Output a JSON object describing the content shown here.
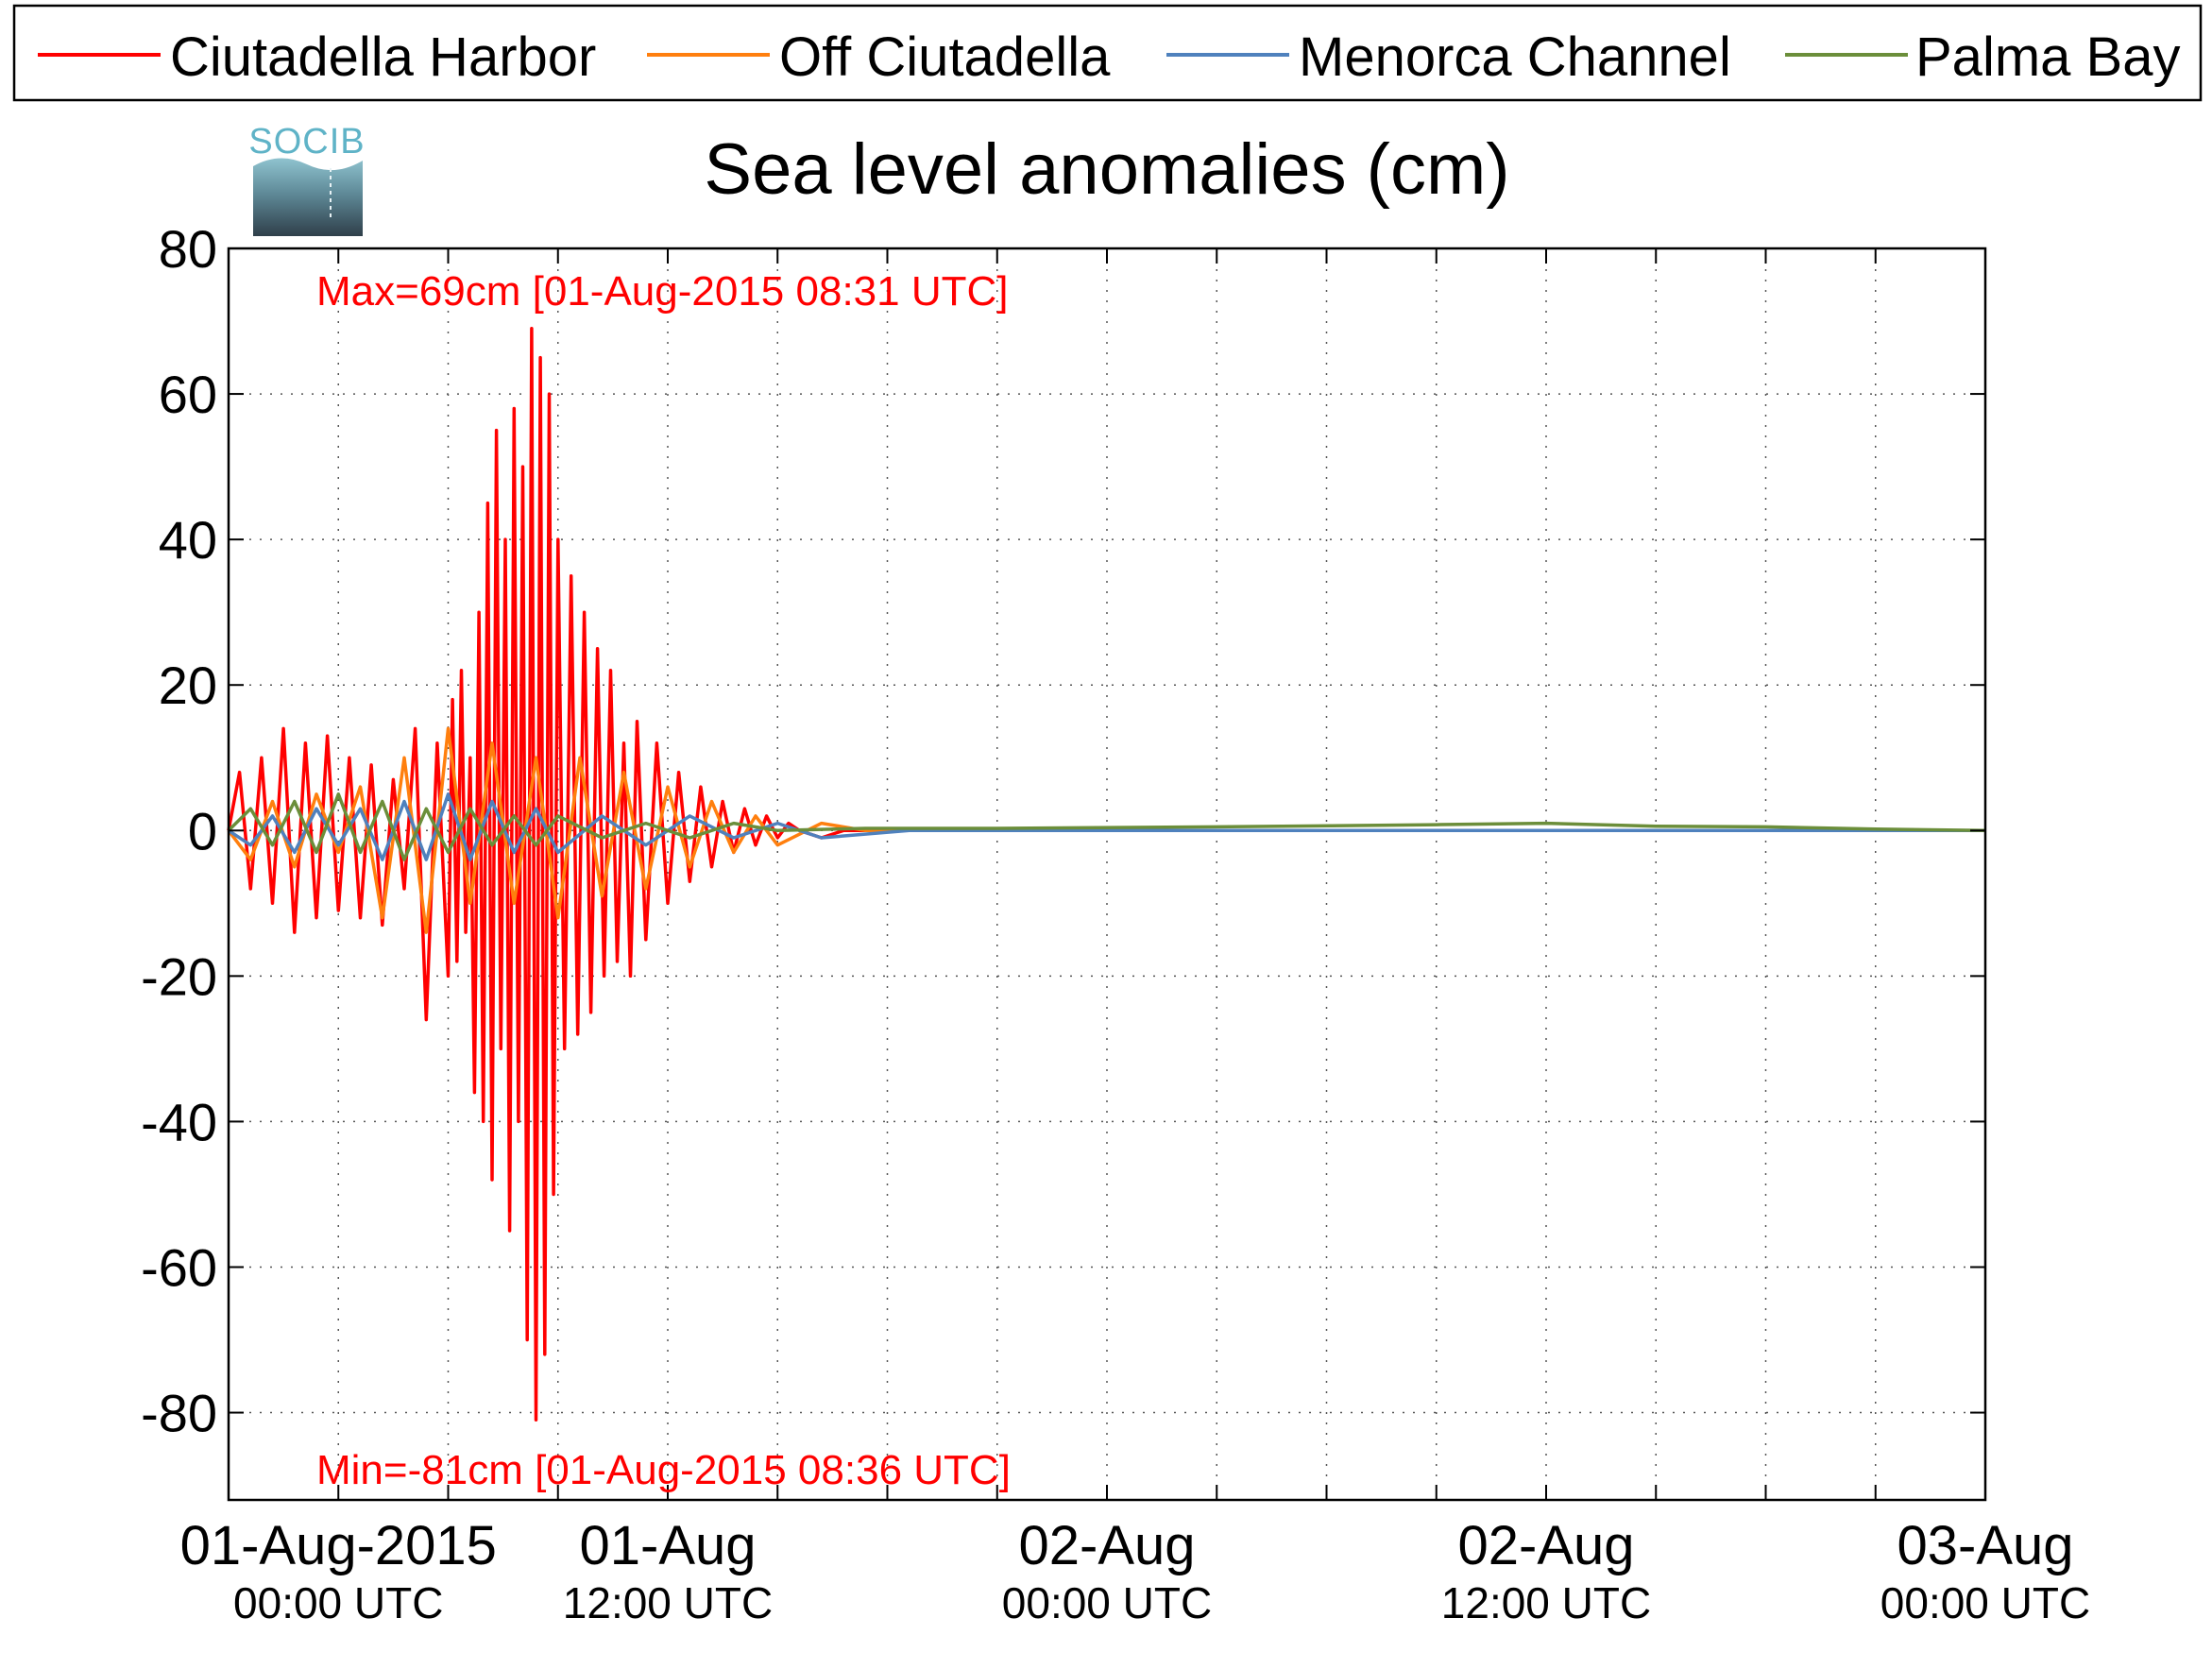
{
  "brand": {
    "logo_text": "SOCIB"
  },
  "legend": {
    "items": [
      {
        "label": "Ciutadella Harbor",
        "color": "#ff0000"
      },
      {
        "label": "Off Ciutadella",
        "color": "#ff7f0e"
      },
      {
        "label": "Menorca Channel",
        "color": "#4f81bd"
      },
      {
        "label": "Palma Bay",
        "color": "#6b8e3a"
      }
    ]
  },
  "chart_data": {
    "type": "line",
    "title": "Sea level anomalies (cm)",
    "xlabel": "",
    "ylabel": "",
    "x_range_hours": [
      -5,
      75
    ],
    "ylim": [
      -92,
      80
    ],
    "grid": true,
    "legend_position": "top",
    "y_ticks": [
      80,
      60,
      40,
      20,
      0,
      -20,
      -40,
      -60,
      -80
    ],
    "x_tick_labels": [
      {
        "hour": 0,
        "line1": "01-Aug-2015",
        "line2": "00:00 UTC"
      },
      {
        "hour": 15,
        "line1": "01-Aug",
        "line2": "12:00 UTC"
      },
      {
        "hour": 35,
        "line1": "02-Aug",
        "line2": "00:00 UTC"
      },
      {
        "hour": 55,
        "line1": "02-Aug",
        "line2": "12:00 UTC"
      },
      {
        "hour": 75,
        "line1": "03-Aug",
        "line2": "00:00 UTC"
      }
    ],
    "x_minor_ticks": [
      -5,
      0,
      5,
      10,
      15,
      20,
      25,
      30,
      35,
      40,
      45,
      50,
      55,
      60,
      65,
      70,
      75
    ],
    "annotations": [
      {
        "text": "Max=69cm [01-Aug-2015 08:31 UTC]",
        "x": -1,
        "y": 74,
        "color": "#ff0000"
      },
      {
        "text": "Min=-81cm [01-Aug-2015 08:36 UTC]",
        "x": -1,
        "y": -88,
        "color": "#ff0000"
      }
    ],
    "series": [
      {
        "name": "Ciutadella Harbor",
        "color": "#ff0000",
        "x": [
          -5,
          -4.5,
          -4,
          -3.5,
          -3,
          -2.5,
          -2,
          -1.5,
          -1,
          -0.5,
          0,
          0.5,
          1,
          1.5,
          2,
          2.5,
          3,
          3.5,
          4,
          4.5,
          5,
          5.2,
          5.4,
          5.6,
          5.8,
          6,
          6.2,
          6.4,
          6.6,
          6.8,
          7,
          7.2,
          7.4,
          7.6,
          7.8,
          8,
          8.2,
          8.4,
          8.6,
          8.8,
          9,
          9.2,
          9.4,
          9.6,
          9.8,
          10,
          10.3,
          10.6,
          10.9,
          11.2,
          11.5,
          11.8,
          12.1,
          12.4,
          12.7,
          13,
          13.3,
          13.6,
          14,
          14.5,
          15,
          15.5,
          16,
          16.5,
          17,
          17.5,
          18,
          18.5,
          19,
          19.5,
          20,
          20.5,
          21,
          22,
          23,
          24,
          25,
          26,
          28,
          30,
          32,
          35,
          38,
          42,
          46,
          50,
          54,
          58,
          62,
          66,
          70,
          75
        ],
        "y": [
          0,
          8,
          -8,
          10,
          -10,
          14,
          -14,
          12,
          -12,
          13,
          -11,
          10,
          -12,
          9,
          -13,
          7,
          -8,
          14,
          -26,
          12,
          -20,
          18,
          -18,
          22,
          -14,
          10,
          -36,
          30,
          -40,
          45,
          -48,
          55,
          -30,
          40,
          -55,
          58,
          -40,
          50,
          -70,
          69,
          -81,
          65,
          -72,
          60,
          -50,
          40,
          -30,
          35,
          -28,
          30,
          -25,
          25,
          -20,
          22,
          -18,
          12,
          -20,
          15,
          -15,
          12,
          -10,
          8,
          -7,
          6,
          -5,
          4,
          -3,
          3,
          -2,
          2,
          -1,
          1,
          0,
          -1,
          0,
          0,
          0,
          0,
          0,
          0,
          0,
          0,
          0,
          0,
          0,
          0,
          0,
          0,
          0,
          0,
          0,
          0
        ]
      },
      {
        "name": "Off Ciutadella",
        "color": "#ff7f0e",
        "x": [
          -5,
          -4,
          -3,
          -2,
          -1,
          0,
          1,
          2,
          3,
          4,
          5,
          6,
          7,
          8,
          9,
          10,
          11,
          12,
          13,
          14,
          15,
          16,
          17,
          18,
          19,
          20,
          22,
          24,
          28,
          32,
          38,
          46,
          54,
          62,
          70,
          75
        ],
        "y": [
          0,
          -4,
          4,
          -5,
          5,
          -3,
          6,
          -12,
          10,
          -14,
          14,
          -10,
          12,
          -10,
          10,
          -12,
          10,
          -9,
          8,
          -8,
          6,
          -5,
          4,
          -3,
          2,
          -2,
          1,
          0,
          0,
          0,
          0,
          0,
          0,
          0,
          0,
          0
        ]
      },
      {
        "name": "Menorca Channel",
        "color": "#4f81bd",
        "x": [
          -5,
          -4,
          -3,
          -2,
          -1,
          0,
          1,
          2,
          3,
          4,
          5,
          6,
          7,
          8,
          9,
          10,
          12,
          14,
          16,
          18,
          20,
          22,
          26,
          30,
          40,
          50,
          60,
          70,
          75
        ],
        "y": [
          0,
          -2,
          2,
          -3,
          3,
          -2,
          3,
          -4,
          4,
          -4,
          5,
          -4,
          4,
          -3,
          3,
          -3,
          2,
          -2,
          2,
          -1,
          1,
          -1,
          0,
          0,
          0,
          0,
          0,
          0,
          0
        ]
      },
      {
        "name": "Palma Bay",
        "color": "#6b8e3a",
        "x": [
          -5,
          -4,
          -3,
          -2,
          -1,
          0,
          1,
          2,
          3,
          4,
          5,
          6,
          7,
          8,
          9,
          10,
          12,
          14,
          16,
          18,
          20,
          24,
          30,
          40,
          50,
          55,
          60,
          65,
          70,
          75
        ],
        "y": [
          0,
          3,
          -2,
          4,
          -3,
          5,
          -3,
          4,
          -4,
          3,
          -3,
          3,
          -2,
          2,
          -2,
          2,
          -1,
          1,
          -1,
          1,
          0,
          0.3,
          0.3,
          0.5,
          0.8,
          1,
          0.6,
          0.5,
          0.2,
          0
        ]
      }
    ]
  }
}
